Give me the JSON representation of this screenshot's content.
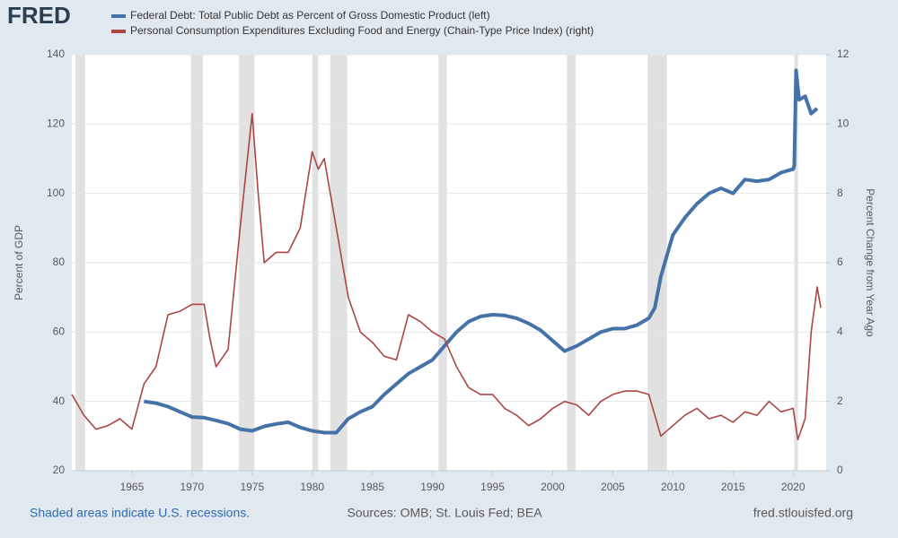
{
  "brand": "FRED",
  "chart_data": {
    "type": "line",
    "ylabel": "Percent of GDP",
    "y2label": "Percent Change from Year Ago",
    "xlim": [
      1960,
      2022.75
    ],
    "xticks": [
      1965,
      1970,
      1975,
      1980,
      1985,
      1990,
      1995,
      2000,
      2005,
      2010,
      2015,
      2020
    ],
    "ylim": [
      20,
      140
    ],
    "yticks": [
      20,
      40,
      60,
      80,
      100,
      120,
      140
    ],
    "y2lim": [
      0,
      12
    ],
    "y2ticks": [
      0,
      2,
      4,
      6,
      8,
      10,
      12
    ],
    "grid": true,
    "recessions": [
      [
        1960.3,
        1961.1
      ],
      [
        1969.9,
        1970.9
      ],
      [
        1973.9,
        1975.2
      ],
      [
        1980.0,
        1980.5
      ],
      [
        1981.5,
        1982.9
      ],
      [
        1990.5,
        1991.2
      ],
      [
        2001.2,
        2001.9
      ],
      [
        2007.9,
        2009.5
      ],
      [
        2020.1,
        2020.4
      ]
    ],
    "series": [
      {
        "name": "Federal Debt: Total Public Debt as Percent of Gross Domestic Product (left)",
        "color": "#4572a7",
        "axis": "y",
        "x": [
          1966,
          1967,
          1968,
          1969,
          1970,
          1971,
          1972,
          1973,
          1974,
          1975,
          1976,
          1977,
          1978,
          1979,
          1980,
          1981,
          1982,
          1982.5,
          1983,
          1984,
          1985,
          1986,
          1987,
          1988,
          1989,
          1990,
          1991,
          1992,
          1993,
          1994,
          1995,
          1996,
          1997,
          1998,
          1999,
          2000,
          2001,
          2002,
          2003,
          2004,
          2005,
          2006,
          2007,
          2008,
          2008.5,
          2009,
          2009.5,
          2010,
          2011,
          2012,
          2013,
          2014,
          2015,
          2016,
          2017,
          2018,
          2019,
          2020,
          2020.1,
          2020.25,
          2020.5,
          2021,
          2021.5,
          2022
        ],
        "values": [
          40,
          39.5,
          38.5,
          37,
          35.5,
          35.3,
          34.5,
          33.6,
          32,
          31.5,
          32.8,
          33.5,
          34,
          32.5,
          31.5,
          31,
          31,
          33,
          35,
          37,
          38.5,
          42,
          45,
          48,
          50,
          52,
          56,
          60,
          63,
          64.5,
          65,
          64.8,
          64,
          62.5,
          60.5,
          57.5,
          54.5,
          56,
          58,
          60,
          61,
          61,
          62,
          64,
          67,
          76,
          82,
          88,
          93,
          97,
          100,
          101.5,
          100,
          104,
          103.5,
          104,
          106,
          107,
          108,
          135.5,
          127,
          128,
          123,
          124.5
        ]
      },
      {
        "name": "Personal Consumption Expenditures Excluding Food and Energy (Chain-Type Price Index) (right)",
        "color": "#aa4643",
        "axis": "y2",
        "x": [
          1960,
          1961,
          1962,
          1963,
          1964,
          1965,
          1966,
          1967,
          1968,
          1969,
          1970,
          1971,
          1971.5,
          1972,
          1973,
          1974,
          1975,
          1975.5,
          1976,
          1977,
          1978,
          1979,
          1980,
          1980.5,
          1981,
          1982,
          1983,
          1984,
          1985,
          1986,
          1987,
          1988,
          1989,
          1990,
          1991,
          1992,
          1993,
          1994,
          1995,
          1996,
          1997,
          1998,
          1999,
          2000,
          2001,
          2002,
          2003,
          2004,
          2005,
          2006,
          2007,
          2008,
          2009,
          2010,
          2011,
          2012,
          2013,
          2014,
          2015,
          2016,
          2017,
          2018,
          2019,
          2020,
          2020.4,
          2021,
          2021.5,
          2022,
          2022.3
        ],
        "values": [
          2.2,
          1.6,
          1.2,
          1.3,
          1.5,
          1.2,
          2.5,
          3.0,
          4.5,
          4.6,
          4.8,
          4.8,
          3.8,
          3.0,
          3.5,
          7.0,
          10.3,
          8.0,
          6.0,
          6.3,
          6.3,
          7.0,
          9.2,
          8.7,
          9.0,
          7.0,
          5.0,
          4.0,
          3.7,
          3.3,
          3.2,
          4.5,
          4.3,
          4.0,
          3.8,
          3.0,
          2.4,
          2.2,
          2.2,
          1.8,
          1.6,
          1.3,
          1.5,
          1.8,
          2.0,
          1.9,
          1.6,
          2.0,
          2.2,
          2.3,
          2.3,
          2.2,
          1.0,
          1.3,
          1.6,
          1.8,
          1.5,
          1.6,
          1.4,
          1.7,
          1.6,
          2.0,
          1.7,
          1.8,
          0.9,
          1.5,
          4.0,
          5.3,
          4.7
        ]
      }
    ]
  },
  "footer": {
    "left": "Shaded areas indicate U.S. recessions.",
    "center": "Sources: OMB; St. Louis Fed; BEA",
    "right": "fred.stlouisfed.org"
  }
}
